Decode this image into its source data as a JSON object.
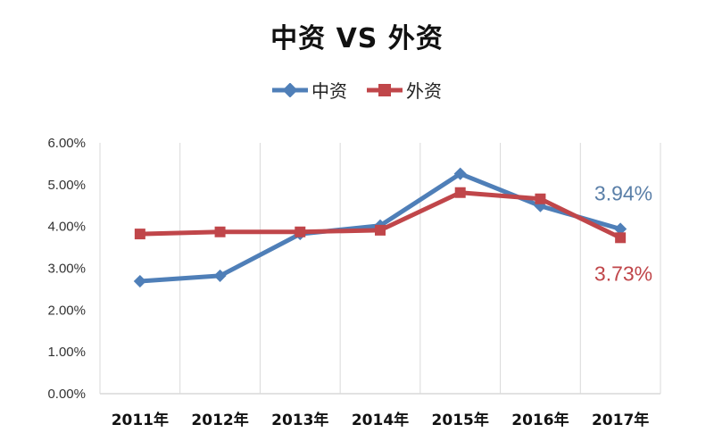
{
  "chart_data": {
    "type": "line",
    "title": "中资 VS 外资",
    "categories": [
      "2011年",
      "2012年",
      "2013年",
      "2014年",
      "2015年",
      "2016年",
      "2017年"
    ],
    "series": [
      {
        "name": "中资",
        "color": "#4f7fb8",
        "marker": "diamond",
        "values": [
          2.69,
          2.82,
          3.82,
          4.02,
          5.26,
          4.49,
          3.94
        ]
      },
      {
        "name": "外资",
        "color": "#c0464a",
        "marker": "square",
        "values": [
          3.82,
          3.87,
          3.87,
          3.91,
          4.81,
          4.66,
          3.73
        ]
      }
    ],
    "data_labels": [
      {
        "series": "中资",
        "category": "2017年",
        "text": "3.94%",
        "color": "#5a7fa8"
      },
      {
        "series": "外资",
        "category": "2017年",
        "text": "3.73%",
        "color": "#c0464a"
      }
    ],
    "yticks": [
      "0.00%",
      "1.00%",
      "2.00%",
      "3.00%",
      "4.00%",
      "5.00%",
      "6.00%"
    ],
    "ylim": [
      0,
      6
    ],
    "grid": "vertical",
    "legend": "top-center"
  }
}
